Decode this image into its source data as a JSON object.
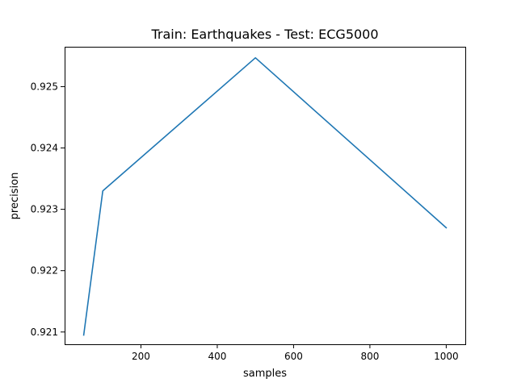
{
  "chart_data": {
    "type": "line",
    "title": "Train: Earthquakes - Test: ECG5000",
    "xlabel": "samples",
    "ylabel": "precision",
    "xlim": [
      0,
      1050
    ],
    "ylim": [
      0.9208,
      0.92565
    ],
    "xticks": [
      200,
      400,
      600,
      800,
      1000
    ],
    "yticks": [
      0.921,
      0.922,
      0.923,
      0.924,
      0.925
    ],
    "ytick_labels": [
      "0.921",
      "0.922",
      "0.923",
      "0.924",
      "0.925"
    ],
    "grid": false,
    "series": [
      {
        "color": "#1f77b4",
        "x": [
          50,
          100,
          500,
          1000
        ],
        "y": [
          0.92095,
          0.9233,
          0.92547,
          0.9227
        ]
      }
    ]
  }
}
